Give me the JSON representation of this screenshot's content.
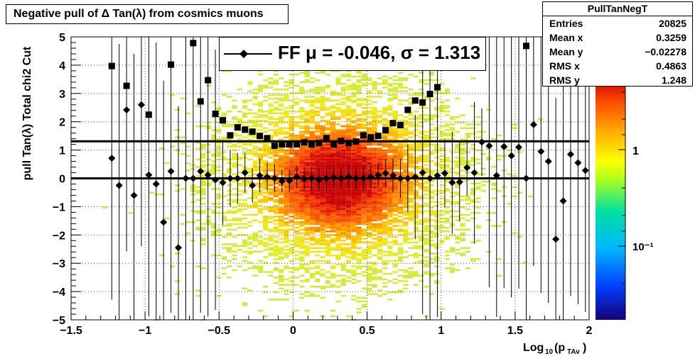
{
  "title": "Negative pull of Δ Tan(λ) from cosmics muons",
  "stats_box": {
    "name": "PullTanNegT",
    "rows": [
      {
        "label": "Entries",
        "value": "20825"
      },
      {
        "label": "Mean x",
        "value": "0.3259"
      },
      {
        "label": "Mean y",
        "value": "−0.02278"
      },
      {
        "label": "RMS x",
        "value": "0.4863"
      },
      {
        "label": "RMS y",
        "value": "1.248"
      }
    ]
  },
  "legend": {
    "entry": "FF μ = -0.046, σ =   1.313"
  },
  "chart_data": {
    "type": "scatter",
    "title": "Negative pull of Δ Tan(λ) from cosmics muons",
    "xlabel": "Log₁₀(pₜₐᵧ)",
    "xlabel_main": "Log",
    "xlabel_sub1": "10",
    "xlabel_mid": "(p",
    "xlabel_sub2": "TAv",
    "xlabel_end": ")",
    "ylabel": "pull Tan(λ)  Total chi2 Cut",
    "xlim": [
      -1.5,
      2
    ],
    "ylim": [
      -5,
      5
    ],
    "x_ticks": [
      -1.5,
      -1,
      -0.5,
      0,
      0.5,
      1,
      1.5,
      2
    ],
    "x_tick_labels": [
      "−1.5",
      "−1",
      "−0.5",
      "0",
      "0.5",
      "1",
      "1.5",
      "2"
    ],
    "y_ticks": [
      -5,
      -4,
      -3,
      -2,
      -1,
      0,
      1,
      2,
      3,
      4,
      5
    ],
    "y_tick_labels": [
      "−5",
      "−4",
      "−3",
      "−2",
      "−1",
      "0",
      "1",
      "2",
      "3",
      "4",
      "5"
    ],
    "grid": true,
    "colorbar": {
      "tick_labels": [
        "1",
        "10⁻¹"
      ],
      "scale": "log"
    },
    "reference_lines": [
      0,
      1.31
    ],
    "series": [
      {
        "name": "mean",
        "marker": "diamond",
        "x": [
          -1.225,
          -1.175,
          -1.125,
          -1.075,
          -1.025,
          -0.975,
          -0.925,
          -0.875,
          -0.825,
          -0.775,
          -0.725,
          -0.675,
          -0.625,
          -0.575,
          -0.525,
          -0.475,
          -0.425,
          -0.375,
          -0.325,
          -0.275,
          -0.225,
          -0.175,
          -0.125,
          -0.075,
          -0.025,
          0.025,
          0.075,
          0.125,
          0.175,
          0.225,
          0.275,
          0.325,
          0.375,
          0.425,
          0.475,
          0.525,
          0.575,
          0.625,
          0.675,
          0.725,
          0.775,
          0.825,
          0.875,
          0.925,
          0.975,
          1.025,
          1.075,
          1.125,
          1.175,
          1.225,
          1.275,
          1.325,
          1.375,
          1.425,
          1.475,
          1.525,
          1.575,
          1.625,
          1.675,
          1.725,
          1.775,
          1.825,
          1.875,
          1.925,
          1.975
        ],
        "y": [
          0.71,
          -0.25,
          2.42,
          -0.6,
          2.6,
          0.12,
          -0.2,
          -1.55,
          0.25,
          -2.45,
          0.0,
          0.0,
          0.25,
          0.12,
          -0.05,
          -0.15,
          0.0,
          0.0,
          0.2,
          -0.25,
          0.1,
          0.05,
          0.0,
          -0.1,
          -0.08,
          0.05,
          -0.02,
          0.0,
          -0.05,
          0.0,
          0.03,
          0.0,
          0.05,
          0.0,
          0.0,
          0.05,
          0.12,
          0.18,
          0.1,
          0.0,
          0.0,
          0.05,
          0.2,
          0.0,
          0.1,
          0.18,
          -0.15,
          -0.13,
          0.38,
          0.2,
          1.28,
          1.15,
          0.1,
          1.12,
          0.8,
          1.1,
          0.0,
          1.9,
          0.95,
          0.6,
          -2.15,
          -0.8,
          0.85,
          0.55,
          0.28
        ],
        "err": [
          5,
          5,
          5,
          5,
          5,
          5,
          5,
          5,
          5,
          5,
          5,
          5,
          5,
          5,
          4.6,
          1.5,
          1.0,
          0.9,
          0.7,
          0.6,
          0.6,
          0.5,
          0.5,
          0.4,
          0.4,
          0.4,
          0.4,
          0.4,
          0.4,
          0.4,
          0.4,
          0.4,
          0.4,
          0.4,
          0.4,
          0.4,
          0.4,
          0.5,
          0.6,
          0.7,
          1.2,
          2.2,
          5,
          5,
          5,
          1.2,
          1.8,
          1.4,
          1.0,
          2.5,
          1.2,
          5,
          5,
          5,
          5,
          5,
          5,
          5,
          5,
          5,
          5,
          5,
          5,
          5,
          5
        ]
      },
      {
        "name": "rms",
        "marker": "square",
        "x": [
          -1.225,
          -1.125,
          -0.975,
          -0.825,
          -0.675,
          -0.625,
          -0.575,
          -0.525,
          -0.475,
          -0.425,
          -0.375,
          -0.325,
          -0.275,
          -0.225,
          -0.175,
          -0.125,
          -0.075,
          -0.025,
          0.025,
          0.075,
          0.125,
          0.175,
          0.225,
          0.275,
          0.325,
          0.375,
          0.425,
          0.475,
          0.525,
          0.575,
          0.625,
          0.675,
          0.725,
          0.775,
          0.825,
          0.875,
          0.925,
          0.975,
          1.575
        ],
        "y": [
          3.97,
          3.27,
          2.25,
          4.02,
          4.78,
          2.72,
          3.47,
          2.28,
          2.05,
          1.52,
          1.8,
          1.72,
          1.65,
          1.5,
          1.42,
          1.15,
          1.2,
          1.2,
          1.2,
          1.27,
          1.2,
          1.25,
          1.42,
          1.2,
          1.32,
          1.25,
          1.3,
          1.52,
          1.45,
          1.5,
          1.7,
          1.95,
          1.88,
          2.42,
          2.75,
          2.68,
          2.98,
          3.22,
          4.68
        ]
      }
    ]
  }
}
